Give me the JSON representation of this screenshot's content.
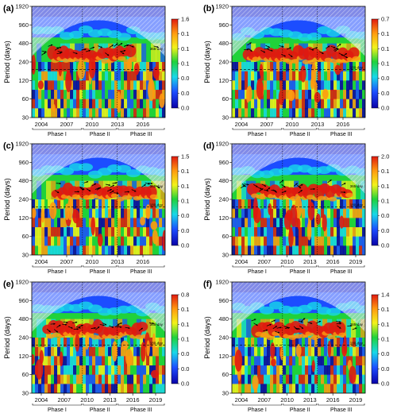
{
  "chart_data": [
    {
      "type": "heatmap",
      "panel_label": "(a)",
      "ylabel": "Period (days)",
      "y_ticks": [
        30,
        60,
        120,
        240,
        480,
        960,
        1920
      ],
      "x_ticks": [
        "2004",
        "2007",
        "2010",
        "2013",
        "2016"
      ],
      "colorbar_ticks": [
        "1.6",
        "0.1",
        "0.1",
        "0.1",
        "0.0",
        "0.0",
        "0.0"
      ],
      "phases": [
        "Phase I",
        "Phase II",
        "Phase III"
      ],
      "annotations": [
        "365-day"
      ],
      "dashed_period": 180
    },
    {
      "type": "heatmap",
      "panel_label": "(b)",
      "ylabel": "Period (days)",
      "y_ticks": [
        30,
        60,
        120,
        240,
        480,
        960,
        1920
      ],
      "x_ticks": [
        "2004",
        "2007",
        "2010",
        "2013",
        "2016"
      ],
      "colorbar_ticks": [
        "0.7",
        "0.1",
        "0.1",
        "0.1",
        "0.0",
        "0.0",
        "0.0"
      ],
      "phases": [
        "Phase I",
        "Phase II",
        "Phase III"
      ],
      "annotations": [
        "180-day"
      ],
      "dashed_period": 180
    },
    {
      "type": "heatmap",
      "panel_label": "(c)",
      "ylabel": "Period (days)",
      "y_ticks": [
        30,
        60,
        120,
        240,
        480,
        960,
        1920
      ],
      "x_ticks": [
        "2004",
        "2007",
        "2010",
        "2013",
        "2016"
      ],
      "colorbar_ticks": [
        "1.5",
        "0.1",
        "0.1",
        "0.1",
        "0.0",
        "0.0",
        "0.0"
      ],
      "phases": [
        "Phase I",
        "Phase II",
        "Phase III"
      ],
      "annotations": [
        "365-day",
        "180-day"
      ],
      "dashed_period": 180
    },
    {
      "type": "heatmap",
      "panel_label": "(d)",
      "ylabel": "Period (days)",
      "y_ticks": [
        30,
        60,
        120,
        240,
        480,
        960,
        1920
      ],
      "x_ticks": [
        "2004",
        "2007",
        "2010",
        "2013",
        "2016",
        "2019"
      ],
      "colorbar_ticks": [
        "2.0",
        "0.1",
        "0.1",
        "0.1",
        "0.0",
        "0.0",
        "0.0"
      ],
      "phases": [
        "Phase I",
        "Phase II",
        "Phase III"
      ],
      "annotations": [
        "365-day",
        "180-day"
      ],
      "dashed_period": 180
    },
    {
      "type": "heatmap",
      "panel_label": "(e)",
      "ylabel": "Period (days)",
      "y_ticks": [
        30,
        60,
        120,
        240,
        480,
        960,
        1920
      ],
      "x_ticks": [
        "2004",
        "2007",
        "2010",
        "2013",
        "2016",
        "2019"
      ],
      "colorbar_ticks": [
        "0.8",
        "0.1",
        "0.1",
        "0.1",
        "0.0",
        "0.0",
        "0.0"
      ],
      "phases": [
        "Phase I",
        "Phase II",
        "Phase III"
      ],
      "annotations": [
        "365-day",
        "180-day"
      ],
      "dashed_period": 180
    },
    {
      "type": "heatmap",
      "panel_label": "(f)",
      "ylabel": "Period (days)",
      "y_ticks": [
        30,
        60,
        120,
        240,
        480,
        960,
        1920
      ],
      "x_ticks": [
        "2004",
        "2007",
        "2010",
        "2013",
        "2016",
        "2019"
      ],
      "colorbar_ticks": [
        "1.4",
        "0.1",
        "0.1",
        "0.1",
        "0.0",
        "0.0",
        "0.0"
      ],
      "phases": [
        "Phase I",
        "Phase II",
        "Phase III"
      ],
      "annotations": [
        "365-day",
        "180-day"
      ],
      "dashed_period": 180
    }
  ],
  "colors": {
    "low": "#0a00a8",
    "blue": "#1c4dff",
    "cyan": "#18d8e8",
    "green": "#20d23a",
    "yellow": "#f2f21a",
    "orange": "#ff9a10",
    "red": "#e01a10",
    "coi": "#dfe3ff"
  }
}
